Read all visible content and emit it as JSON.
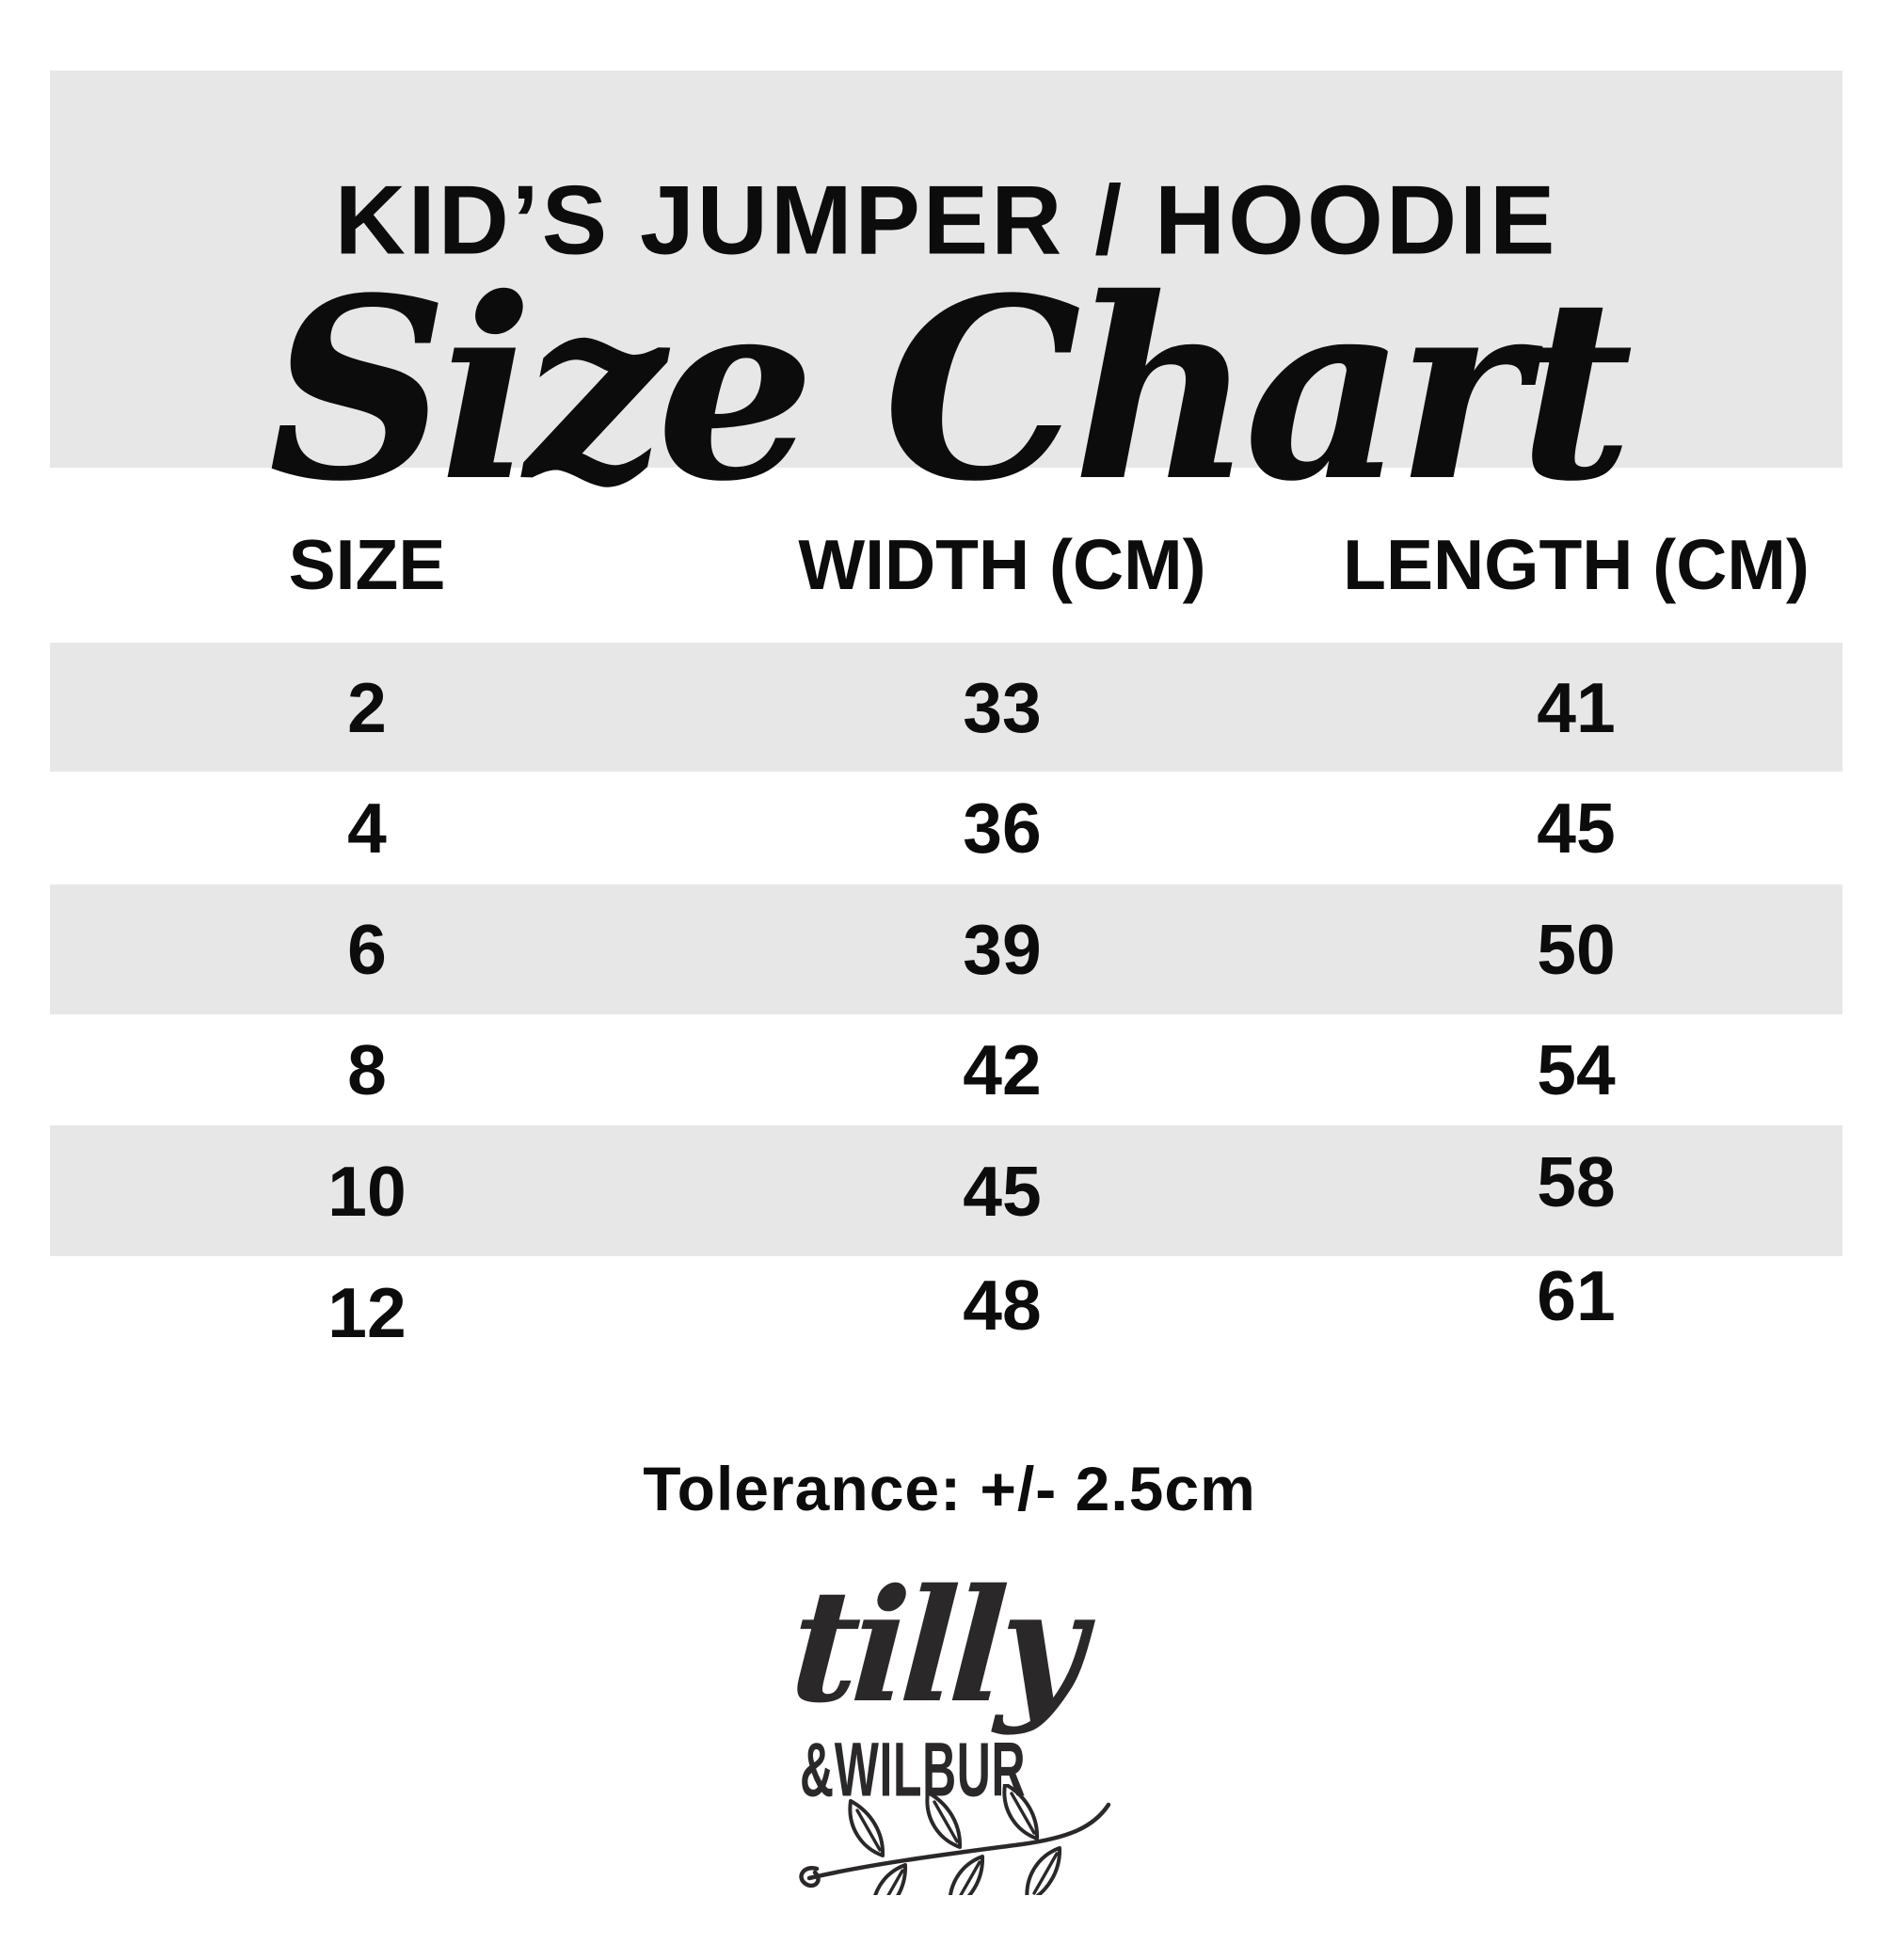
{
  "page": {
    "background_color": "#ffffff",
    "text_color": "#0c0c0c"
  },
  "header": {
    "background_color": "#e7e7e8",
    "kicker": "KID’S JUMPER / HOODIE",
    "title": "Size Chart"
  },
  "table": {
    "stripe_color": "#e7e7e8",
    "columns": [
      "SIZE",
      "WIDTH (CM)",
      "LENGTH (CM)"
    ],
    "rows": [
      [
        "2",
        "33",
        "41"
      ],
      [
        "4",
        "36",
        "45"
      ],
      [
        "6",
        "39",
        "50"
      ],
      [
        "8",
        "42",
        "54"
      ],
      [
        "10",
        "45",
        "58"
      ],
      [
        "12",
        "48",
        "61"
      ]
    ]
  },
  "chart_data": {
    "type": "table",
    "title": "Kid's Jumper / Hoodie Size Chart",
    "columns": [
      "SIZE",
      "WIDTH (CM)",
      "LENGTH (CM)"
    ],
    "rows": [
      [
        2,
        33,
        41
      ],
      [
        4,
        36,
        45
      ],
      [
        6,
        39,
        50
      ],
      [
        8,
        42,
        54
      ],
      [
        10,
        45,
        58
      ],
      [
        12,
        48,
        61
      ]
    ]
  },
  "tolerance_note": "Tolerance: +/- 2.5cm",
  "logo": {
    "color": "#2b2829",
    "line1": "tilly",
    "line2": "&WILBUR",
    "icon": "laurel-branch-icon"
  }
}
